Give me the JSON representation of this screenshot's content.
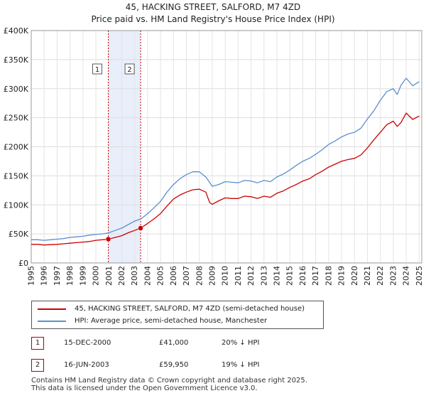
{
  "chart_data": {
    "type": "line",
    "title": "45, HACKING STREET, SALFORD, M7 4ZD",
    "subtitle": "Price paid vs. HM Land Registry's House Price Index (HPI)",
    "xlabel": "",
    "ylabel": "",
    "xlim": [
      1995,
      2025.2
    ],
    "ylim": [
      0,
      400000
    ],
    "y_ticks": [
      0,
      50000,
      100000,
      150000,
      200000,
      250000,
      300000,
      350000,
      400000
    ],
    "y_tick_labels": [
      "£0",
      "£50K",
      "£100K",
      "£150K",
      "£200K",
      "£250K",
      "£300K",
      "£350K",
      "£400K"
    ],
    "x_ticks": [
      1995,
      1996,
      1997,
      1998,
      1999,
      2000,
      2001,
      2002,
      2003,
      2004,
      2005,
      2006,
      2007,
      2008,
      2009,
      2010,
      2011,
      2012,
      2013,
      2014,
      2015,
      2016,
      2017,
      2018,
      2019,
      2020,
      2021,
      2022,
      2023,
      2024,
      2025
    ],
    "x_tick_labels": [
      "1995",
      "1996",
      "1997",
      "1998",
      "1999",
      "2000",
      "2001",
      "2002",
      "2003",
      "2004",
      "2005",
      "2006",
      "2007",
      "2008",
      "2009",
      "2010",
      "2011",
      "2012",
      "2013",
      "2014",
      "2015",
      "2016",
      "2017",
      "2018",
      "2019",
      "2020",
      "2021",
      "2022",
      "2023",
      "2024",
      "2025"
    ],
    "grid": true,
    "shaded_region": [
      2000.96,
      2003.46
    ],
    "series": [
      {
        "name": "45, HACKING STREET, SALFORD, M7 4ZD (semi-detached house)",
        "color": "#cc0000",
        "x": [
          1995.0,
          1995.5,
          1996.0,
          1996.5,
          1997.0,
          1997.5,
          1998.0,
          1998.5,
          1999.0,
          1999.5,
          2000.0,
          2000.5,
          2000.96,
          2001.5,
          2002.0,
          2002.5,
          2003.0,
          2003.46,
          2004.0,
          2004.5,
          2005.0,
          2005.5,
          2006.0,
          2006.5,
          2007.0,
          2007.5,
          2008.0,
          2008.5,
          2008.8,
          2009.0,
          2009.5,
          2010.0,
          2010.5,
          2011.0,
          2011.5,
          2012.0,
          2012.5,
          2013.0,
          2013.5,
          2014.0,
          2014.5,
          2015.0,
          2015.5,
          2016.0,
          2016.5,
          2017.0,
          2017.5,
          2018.0,
          2018.5,
          2019.0,
          2019.5,
          2020.0,
          2020.5,
          2021.0,
          2021.5,
          2022.0,
          2022.5,
          2023.0,
          2023.3,
          2023.6,
          2024.0,
          2024.5,
          2025.0
        ],
        "values": [
          32000,
          32000,
          31000,
          31500,
          32000,
          33000,
          34000,
          35000,
          36000,
          37000,
          39000,
          40000,
          41000,
          44000,
          47000,
          52000,
          56000,
          59950,
          68000,
          76000,
          85000,
          98000,
          110000,
          117000,
          122000,
          126000,
          127000,
          122000,
          104000,
          101000,
          107000,
          112000,
          111000,
          111000,
          115000,
          114000,
          111000,
          115000,
          113000,
          120000,
          124000,
          130000,
          135000,
          141000,
          145000,
          152000,
          158000,
          165000,
          170000,
          175000,
          178000,
          180000,
          186000,
          198000,
          212000,
          225000,
          238000,
          244000,
          235000,
          242000,
          258000,
          247000,
          253000
        ]
      },
      {
        "name": "HPI: Average price, semi-detached house, Manchester",
        "color": "#5b8fd0",
        "x": [
          1995.0,
          1995.5,
          1996.0,
          1996.5,
          1997.0,
          1997.5,
          1998.0,
          1998.5,
          1999.0,
          1999.5,
          2000.0,
          2000.5,
          2001.0,
          2001.5,
          2002.0,
          2002.5,
          2003.0,
          2003.5,
          2004.0,
          2004.5,
          2005.0,
          2005.5,
          2006.0,
          2006.5,
          2007.0,
          2007.5,
          2008.0,
          2008.5,
          2009.0,
          2009.5,
          2010.0,
          2010.5,
          2011.0,
          2011.5,
          2012.0,
          2012.5,
          2013.0,
          2013.5,
          2014.0,
          2014.5,
          2015.0,
          2015.5,
          2016.0,
          2016.5,
          2017.0,
          2017.5,
          2018.0,
          2018.5,
          2019.0,
          2019.5,
          2020.0,
          2020.5,
          2021.0,
          2021.5,
          2022.0,
          2022.5,
          2023.0,
          2023.3,
          2023.6,
          2024.0,
          2024.5,
          2025.0
        ],
        "values": [
          40000,
          40000,
          39000,
          40000,
          41000,
          42000,
          44000,
          45000,
          46000,
          48000,
          49000,
          50000,
          52000,
          56000,
          60000,
          66000,
          72000,
          76000,
          85000,
          95000,
          106000,
          122000,
          135000,
          145000,
          152000,
          157000,
          157000,
          148000,
          132000,
          135000,
          140000,
          139000,
          138000,
          142000,
          141000,
          138000,
          142000,
          140000,
          148000,
          153000,
          160000,
          168000,
          175000,
          180000,
          187000,
          195000,
          204000,
          210000,
          217000,
          222000,
          225000,
          232000,
          248000,
          262000,
          280000,
          295000,
          300000,
          290000,
          306000,
          318000,
          305000,
          312000
        ]
      }
    ],
    "sales": [
      {
        "x": 2000.96,
        "y": 41000,
        "label": "1"
      },
      {
        "x": 2003.46,
        "y": 59950,
        "label": "2"
      }
    ]
  },
  "legend": {
    "property_label": "45, HACKING STREET, SALFORD, M7 4ZD (semi-detached house)",
    "hpi_label": "HPI: Average price, semi-detached house, Manchester",
    "property_color": "#cc0000",
    "hpi_color": "#5b8fd0"
  },
  "sales_table": [
    {
      "badge": "1",
      "date": "15-DEC-2000",
      "price": "£41,000",
      "diff": "20% ↓ HPI"
    },
    {
      "badge": "2",
      "date": "16-JUN-2003",
      "price": "£59,950",
      "diff": "19% ↓ HPI"
    }
  ],
  "footer": {
    "line1": "Contains HM Land Registry data © Crown copyright and database right 2025.",
    "line2": "This data is licensed under the Open Government Licence v3.0."
  }
}
